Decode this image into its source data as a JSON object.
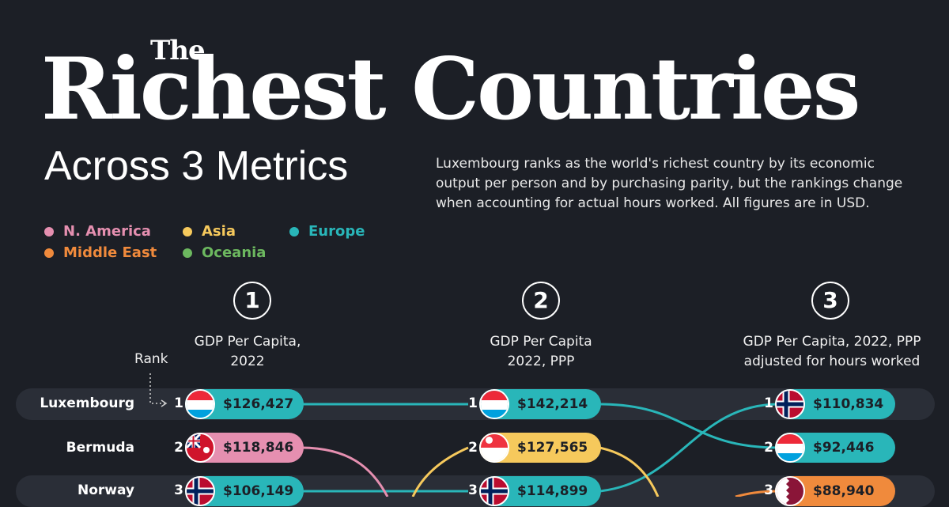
{
  "title": {
    "small": "The",
    "main": "Richest Countries",
    "sub": "Across 3 Metrics"
  },
  "description": "Luxembourg ranks as the world's richest country by its economic output per person and by purchasing parity, but the rankings change when accounting for actual hours worked. All figures are in USD.",
  "legend": [
    {
      "label": "N. America",
      "color": "#e58fb0"
    },
    {
      "label": "Asia",
      "color": "#f6c95c"
    },
    {
      "label": "Europe",
      "color": "#29b6b9"
    },
    {
      "label": "Middle East",
      "color": "#f08a3c"
    },
    {
      "label": "Oceania",
      "color": "#6cb85f"
    }
  ],
  "rank_label": "Rank",
  "metrics": [
    {
      "number": "1",
      "label_line1": "GDP Per Capita,",
      "label_line2": "2022"
    },
    {
      "number": "2",
      "label_line1": "GDP Per Capita",
      "label_line2": "2022, PPP"
    },
    {
      "number": "3",
      "label_line1": "GDP Per Capita, 2022, PPP",
      "label_line2": "adjusted for hours worked"
    }
  ],
  "colors": {
    "europe": "#29b6b9",
    "n_america": "#e58fb0",
    "asia": "#f6c95c",
    "middle_east": "#f08a3c"
  },
  "chart_data": {
    "type": "table",
    "countries": [
      "Luxembourg",
      "Bermuda",
      "Norway"
    ],
    "columns": [
      {
        "metric": "GDP Per Capita, 2022",
        "entries": [
          {
            "rank": "1",
            "country": "Luxembourg",
            "value": "$126,427",
            "region": "europe",
            "flag": "luxembourg-flag"
          },
          {
            "rank": "2",
            "country": "Bermuda",
            "value": "$118,846",
            "region": "n_america",
            "flag": "bermuda-flag"
          },
          {
            "rank": "3",
            "country": "Norway",
            "value": "$106,149",
            "region": "europe",
            "flag": "norway-flag"
          }
        ]
      },
      {
        "metric": "GDP Per Capita 2022, PPP",
        "entries": [
          {
            "rank": "1",
            "country": "Luxembourg",
            "value": "$142,214",
            "region": "europe",
            "flag": "luxembourg-flag"
          },
          {
            "rank": "2",
            "country": "Singapore",
            "value": "$127,565",
            "region": "asia",
            "flag": "singapore-flag"
          },
          {
            "rank": "3",
            "country": "Norway",
            "value": "$114,899",
            "region": "europe",
            "flag": "norway-flag"
          }
        ]
      },
      {
        "metric": "GDP Per Capita, 2022, PPP adjusted for hours worked",
        "entries": [
          {
            "rank": "1",
            "country": "Norway",
            "value": "$110,834",
            "region": "europe",
            "flag": "norway-flag"
          },
          {
            "rank": "2",
            "country": "Luxembourg",
            "value": "$92,446",
            "region": "europe",
            "flag": "luxembourg-flag"
          },
          {
            "rank": "3",
            "country": "Qatar",
            "value": "$88,940",
            "region": "middle_east",
            "flag": "qatar-flag"
          }
        ]
      }
    ]
  }
}
